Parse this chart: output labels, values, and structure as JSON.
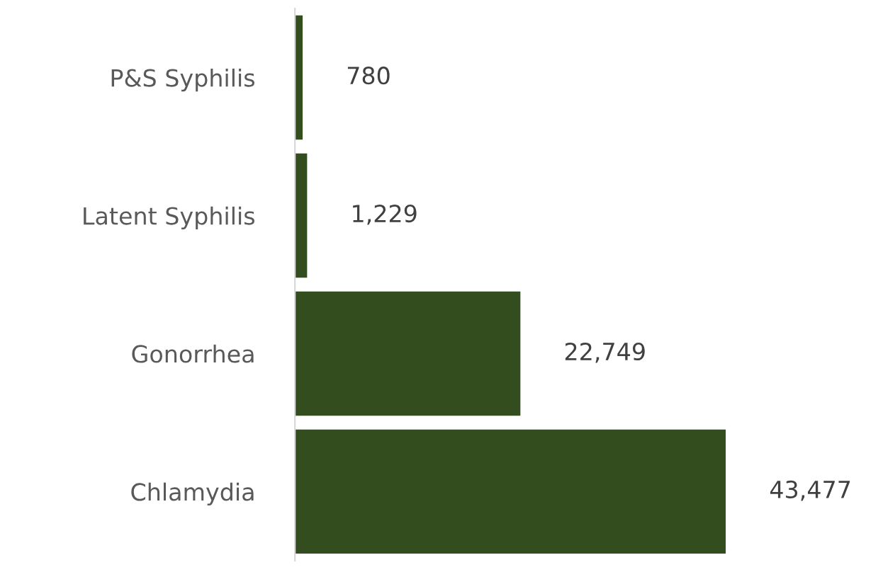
{
  "chart_data": {
    "type": "bar",
    "orientation": "horizontal",
    "categories": [
      "P&S Syphilis",
      "Latent Syphilis",
      "Gonorrhea",
      "Chlamydia"
    ],
    "values": [
      780,
      1229,
      22749,
      43477
    ],
    "value_labels": [
      "780",
      "1,229",
      "22,749",
      "43,477"
    ],
    "color": "#334d1f",
    "tick_labels": "y",
    "grid": false,
    "legend": false
  }
}
